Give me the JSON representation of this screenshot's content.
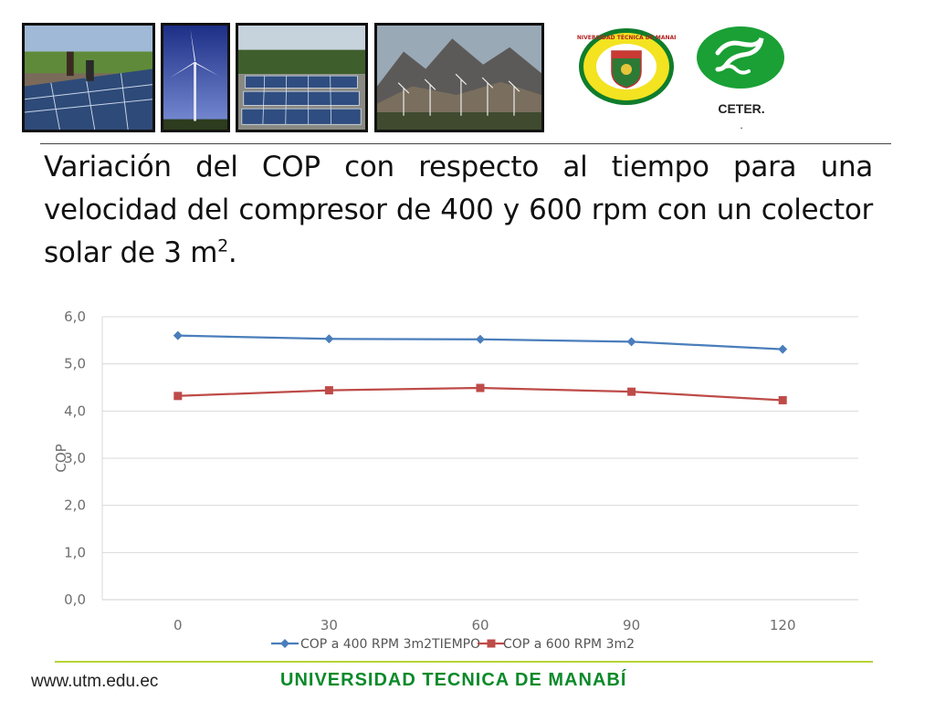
{
  "header": {
    "photos": [
      "solar-panel-installation-photo",
      "wind-turbine-photo",
      "solar-panel-array-photo",
      "wind-farm-mountains-photo"
    ],
    "logo_utm_text": "UNIVERSIDAD TECNICA DE MANABI",
    "logo_ceter_label": "CETER.",
    "logo_ceter_dot": "."
  },
  "slide": {
    "title_main": "Variación del COP con respecto al tiempo para una velocidad del compresor de 400 y 600 rpm con un colector solar de 3 m",
    "title_sup": "2",
    "title_end": "."
  },
  "chart_data": {
    "type": "line",
    "title": "",
    "x": [
      0,
      30,
      60,
      90,
      120
    ],
    "x_tick_labels": [
      "0",
      "30",
      "60",
      "90",
      "120"
    ],
    "ylim": [
      0,
      6
    ],
    "y_tick_labels": [
      "0,0",
      "1,0",
      "2,0",
      "3,0",
      "4,0",
      "5,0",
      "6,0"
    ],
    "ylabel": "COP",
    "grid": true,
    "legend_position": "bottom",
    "legend_text": "COP a 400 RPM 3m2TIEMPO",
    "series": [
      {
        "name": "COP a 400 RPM 3m2",
        "marker": "diamond",
        "color": "#4a7ebb",
        "values": [
          5.6,
          5.53,
          5.52,
          5.47,
          5.31
        ]
      },
      {
        "name": "COP a 600 RPM 3m2",
        "marker": "square",
        "color": "#be4b48",
        "values": [
          4.32,
          4.44,
          4.49,
          4.41,
          4.23
        ]
      }
    ]
  },
  "footer": {
    "url": "www.utm.edu.ec",
    "university": "UNIVERSIDAD TECNICA DE MANABÍ"
  }
}
